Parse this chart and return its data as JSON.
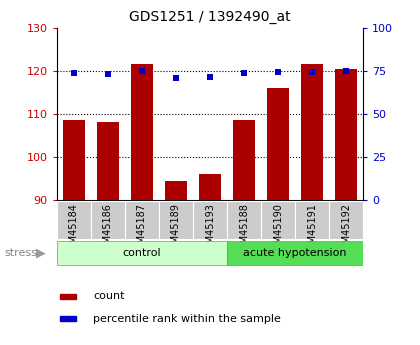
{
  "title": "GDS1251 / 1392490_at",
  "samples": [
    "GSM45184",
    "GSM45186",
    "GSM45187",
    "GSM45189",
    "GSM45193",
    "GSM45188",
    "GSM45190",
    "GSM45191",
    "GSM45192"
  ],
  "counts": [
    108.5,
    108.0,
    121.5,
    94.5,
    96.0,
    108.5,
    116.0,
    121.5,
    120.5
  ],
  "percentiles": [
    73.5,
    73.0,
    75.0,
    71.0,
    71.5,
    73.5,
    74.0,
    74.5,
    75.0
  ],
  "ylim_left": [
    90,
    130
  ],
  "ylim_right": [
    0,
    100
  ],
  "yticks_left": [
    90,
    100,
    110,
    120,
    130
  ],
  "yticks_right": [
    0,
    25,
    50,
    75,
    100
  ],
  "groups": [
    {
      "label": "control",
      "n": 5,
      "color": "#ccffcc"
    },
    {
      "label": "acute hypotension",
      "n": 4,
      "color": "#55dd55"
    }
  ],
  "bar_color": "#aa0000",
  "dot_color": "#0000cc",
  "bar_width": 0.65,
  "stress_label": "stress",
  "legend_count_label": "count",
  "legend_pct_label": "percentile rank within the sample",
  "grid_color": "black",
  "left_label_color": "#cc0000",
  "right_label_color": "#0000cc",
  "background_tick": "#cccccc",
  "tick_label_fontsize": 7,
  "ytick_fontsize": 8,
  "title_fontsize": 10,
  "group_fontsize": 8,
  "legend_fontsize": 8
}
